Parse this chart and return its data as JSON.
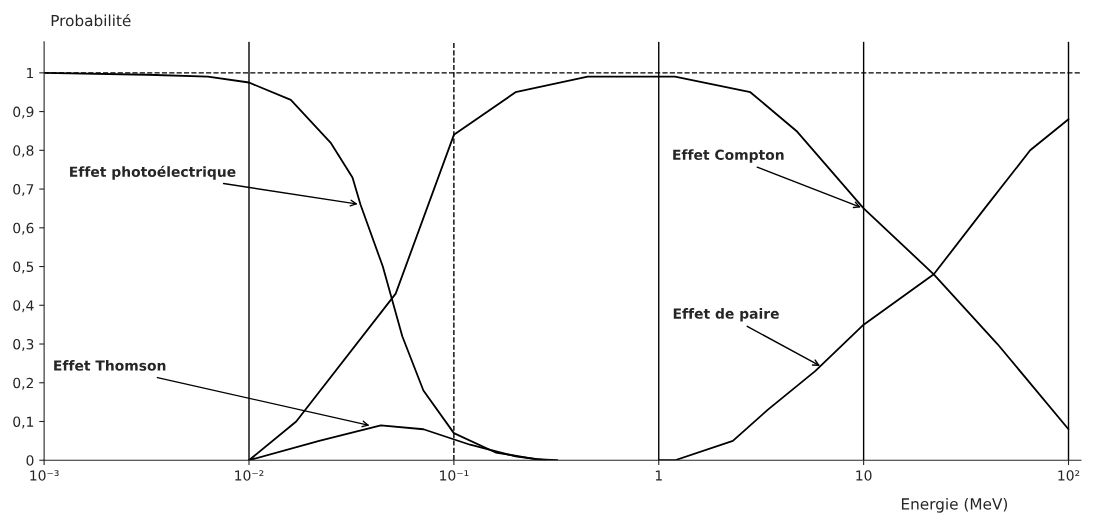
{
  "chart_data": {
    "type": "line",
    "xlabel": "Energie (MeV)",
    "ylabel": "Probabilité",
    "log": "x",
    "xlim": [
      0.001,
      115
    ],
    "xticks": [
      {
        "value": 0.001,
        "label": "10⁻³"
      },
      {
        "value": 0.01,
        "label": "10⁻²"
      },
      {
        "value": 0.1,
        "label": "10⁻¹"
      },
      1,
      10,
      {
        "value": 100,
        "label": "10²"
      }
    ],
    "ylim": [
      0,
      1.08
    ],
    "yticks": [
      0,
      {
        "value": 0.1,
        "label": "0,1"
      },
      {
        "value": 0.2,
        "label": "0,2"
      },
      {
        "value": 0.3,
        "label": "0,3"
      },
      {
        "value": 0.4,
        "label": "0,4"
      },
      {
        "value": 0.5,
        "label": "0,5"
      },
      {
        "value": 0.6,
        "label": "0,6"
      },
      {
        "value": 0.7,
        "label": "0,7"
      },
      {
        "value": 0.8,
        "label": "0,8"
      },
      {
        "value": 0.9,
        "label": "0,9"
      },
      1
    ],
    "grid": false,
    "legend": false,
    "marker": "none",
    "line_style": "solid",
    "series": [
      {
        "color": "#000000",
        "x": [
          0.001,
          0.0032,
          0.0063,
          0.01,
          0.016,
          0.025,
          0.032,
          0.035,
          0.045,
          0.056,
          0.071,
          0.1,
          0.16,
          0.25,
          0.32
        ],
        "values": [
          1,
          0.995,
          0.99,
          0.975,
          0.93,
          0.82,
          0.73,
          0.66,
          0.5,
          0.32,
          0.18,
          0.07,
          0.02,
          0.003,
          0
        ]
      },
      {
        "color": "#000000",
        "x": [
          0.01,
          0.017,
          0.052,
          0.1,
          0.2,
          0.45,
          1.2,
          2.8,
          4.7,
          10,
          22,
          45,
          100
        ],
        "values": [
          0,
          0.1,
          0.43,
          0.84,
          0.95,
          0.99,
          0.99,
          0.95,
          0.85,
          0.65,
          0.48,
          0.3,
          0.08
        ]
      },
      {
        "color": "#000000",
        "x": [
          0.01,
          0.022,
          0.044,
          0.071,
          0.12,
          0.2,
          0.28
        ],
        "values": [
          0,
          0.05,
          0.09,
          0.08,
          0.04,
          0.01,
          0
        ]
      },
      {
        "color": "#000000",
        "x": [
          1,
          1.2,
          2.3,
          3.4,
          5.8,
          10,
          22,
          39,
          65,
          100
        ],
        "values": [
          0,
          0.0,
          0.05,
          0.13,
          0.23,
          0.35,
          0.48,
          0.65,
          0.8,
          0.88
        ]
      }
    ],
    "ref_lines": [
      {
        "axis": "x",
        "value": 0.01,
        "line_style": "solid"
      },
      {
        "axis": "x",
        "value": 0.1,
        "line_style": "dashed"
      },
      {
        "axis": "x",
        "value": 1,
        "line_style": "solid"
      },
      {
        "axis": "x",
        "value": 10,
        "line_style": "solid"
      },
      {
        "axis": "x",
        "value": 100,
        "line_style": "solid"
      },
      {
        "axis": "y",
        "value": 1,
        "line_style": "dashed"
      }
    ],
    "annotations": [
      {
        "text": "Effet photoélectrique",
        "x": 0.035,
        "y": 0.66
      },
      {
        "text": "Effet Thomson",
        "x": 0.04,
        "y": 0.088
      },
      {
        "text": "Effet Compton",
        "x": 10,
        "y": 0.65
      },
      {
        "text": "Effet de paire",
        "x": 6.3,
        "y": 0.24
      }
    ]
  }
}
